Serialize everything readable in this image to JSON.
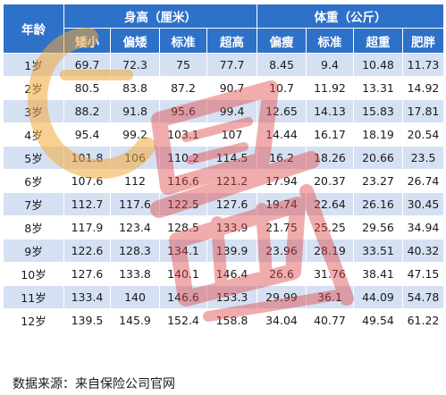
{
  "header": {
    "age_label": "年龄",
    "height_group": "身高（厘米）",
    "weight_group": "体重（公斤）",
    "height_cols": [
      "矮小",
      "偏矮",
      "标准",
      "超高"
    ],
    "weight_cols": [
      "偏瘦",
      "标准",
      "超重",
      "肥胖"
    ]
  },
  "rows": [
    {
      "age": "1岁",
      "height": [
        "69.7",
        "72.3",
        "75",
        "77.7"
      ],
      "weight": [
        "8.45",
        "9.4",
        "10.48",
        "11.73"
      ]
    },
    {
      "age": "2岁",
      "height": [
        "80.5",
        "83.8",
        "87.2",
        "90.7"
      ],
      "weight": [
        "10.7",
        "11.92",
        "13.31",
        "14.92"
      ]
    },
    {
      "age": "3岁",
      "height": [
        "88.2",
        "91.8",
        "95.6",
        "99.4"
      ],
      "weight": [
        "12.65",
        "14.13",
        "15.83",
        "17.81"
      ]
    },
    {
      "age": "4岁",
      "height": [
        "95.4",
        "99.2",
        "103.1",
        "107"
      ],
      "weight": [
        "14.44",
        "16.17",
        "18.19",
        "20.54"
      ]
    },
    {
      "age": "5岁",
      "height": [
        "101.8",
        "106",
        "110.2",
        "114.5"
      ],
      "weight": [
        "16.2",
        "18.26",
        "20.66",
        "23.5"
      ]
    },
    {
      "age": "6岁",
      "height": [
        "107.6",
        "112",
        "116.6",
        "121.2"
      ],
      "weight": [
        "17.94",
        "20.37",
        "23.27",
        "26.74"
      ]
    },
    {
      "age": "7岁",
      "height": [
        "112.7",
        "117.6",
        "122.5",
        "127.6"
      ],
      "weight": [
        "19.74",
        "22.64",
        "26.16",
        "30.45"
      ]
    },
    {
      "age": "8岁",
      "height": [
        "117.9",
        "123.4",
        "128.5",
        "133.9"
      ],
      "weight": [
        "21.75",
        "25.25",
        "29.56",
        "34.94"
      ]
    },
    {
      "age": "9岁",
      "height": [
        "122.6",
        "128.3",
        "134.1",
        "139.9"
      ],
      "weight": [
        "23.96",
        "28.19",
        "33.51",
        "40.32"
      ]
    },
    {
      "age": "10岁",
      "height": [
        "127.6",
        "133.8",
        "140.1",
        "146.4"
      ],
      "weight": [
        "26.6",
        "31.76",
        "38.41",
        "47.15"
      ]
    },
    {
      "age": "11岁",
      "height": [
        "133.4",
        "140",
        "146.6",
        "153.3"
      ],
      "weight": [
        "29.99",
        "36.1",
        "44.09",
        "54.78"
      ]
    },
    {
      "age": "12岁",
      "height": [
        "139.5",
        "145.9",
        "152.4",
        "158.8"
      ],
      "weight": [
        "34.04",
        "40.77",
        "49.54",
        "61.22"
      ]
    }
  ],
  "source_note": "数据来源：来自保险公司官网",
  "colors": {
    "header_bg": "#2e71c9",
    "stripe": "#c9d7f0",
    "watermark_red": "#e04848",
    "watermark_orange": "#f2a93b"
  }
}
